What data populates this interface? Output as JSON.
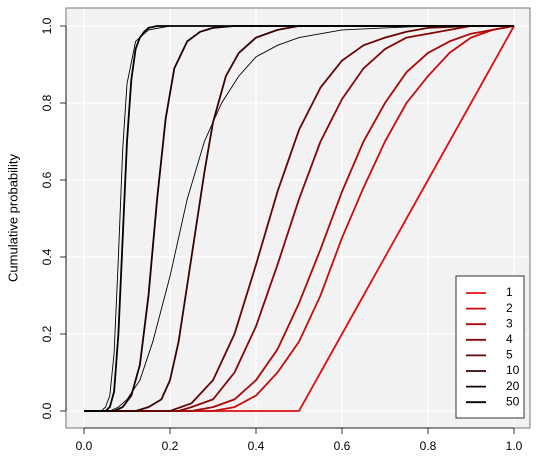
{
  "chart_data": {
    "type": "line",
    "title": "",
    "xlabel": "",
    "ylabel": "Cumulative probability",
    "xlim": [
      0.0,
      1.0
    ],
    "ylim": [
      0.0,
      1.0
    ],
    "x_ticks": [
      "0.0",
      "0.2",
      "0.4",
      "0.6",
      "0.8",
      "1.0"
    ],
    "y_ticks": [
      "0.0",
      "0.2",
      "0.4",
      "0.6",
      "0.8",
      "1.0"
    ],
    "grid": true,
    "background": "#f2f2f2",
    "legend_position": "bottom-right",
    "series": [
      {
        "name": "1",
        "color": "#e01010",
        "x": [
          0.0,
          0.5,
          0.55,
          0.6,
          0.65,
          0.7,
          0.75,
          0.8,
          0.85,
          0.9,
          0.95,
          1.0
        ],
        "y": [
          0.0,
          0.0,
          0.1,
          0.2,
          0.3,
          0.4,
          0.5,
          0.6,
          0.7,
          0.8,
          0.9,
          1.0
        ]
      },
      {
        "name": "2",
        "color": "#c80c0c",
        "x": [
          0.0,
          0.3,
          0.35,
          0.4,
          0.45,
          0.5,
          0.55,
          0.6,
          0.65,
          0.7,
          0.75,
          0.8,
          0.85,
          0.9,
          0.95,
          1.0
        ],
        "y": [
          0.0,
          0.0,
          0.01,
          0.04,
          0.1,
          0.18,
          0.3,
          0.45,
          0.58,
          0.7,
          0.8,
          0.87,
          0.93,
          0.97,
          0.99,
          1.0
        ]
      },
      {
        "name": "3",
        "color": "#a80808",
        "x": [
          0.0,
          0.25,
          0.3,
          0.35,
          0.4,
          0.45,
          0.5,
          0.55,
          0.6,
          0.65,
          0.7,
          0.75,
          0.8,
          0.85,
          0.9,
          0.95,
          1.0
        ],
        "y": [
          0.0,
          0.0,
          0.01,
          0.03,
          0.08,
          0.16,
          0.28,
          0.42,
          0.57,
          0.7,
          0.8,
          0.88,
          0.93,
          0.96,
          0.98,
          0.99,
          1.0
        ]
      },
      {
        "name": "4",
        "color": "#880606",
        "x": [
          0.0,
          0.22,
          0.25,
          0.3,
          0.35,
          0.4,
          0.45,
          0.5,
          0.55,
          0.6,
          0.65,
          0.7,
          0.75,
          0.8,
          0.85,
          0.9,
          1.0
        ],
        "y": [
          0.0,
          0.0,
          0.01,
          0.03,
          0.1,
          0.22,
          0.38,
          0.55,
          0.7,
          0.81,
          0.89,
          0.94,
          0.97,
          0.98,
          0.99,
          1.0,
          1.0
        ]
      },
      {
        "name": "5",
        "color": "#660404",
        "x": [
          0.0,
          0.2,
          0.25,
          0.3,
          0.35,
          0.4,
          0.45,
          0.5,
          0.55,
          0.6,
          0.65,
          0.7,
          0.75,
          0.8,
          0.9,
          1.0
        ],
        "y": [
          0.0,
          0.0,
          0.02,
          0.08,
          0.2,
          0.38,
          0.57,
          0.73,
          0.84,
          0.91,
          0.95,
          0.97,
          0.985,
          0.995,
          1.0,
          1.0
        ]
      },
      {
        "name": "10",
        "color": "#3a0202",
        "x": [
          0.0,
          0.12,
          0.15,
          0.18,
          0.2,
          0.22,
          0.25,
          0.28,
          0.3,
          0.33,
          0.36,
          0.4,
          0.45,
          0.5,
          0.6,
          1.0
        ],
        "y": [
          0.0,
          0.0,
          0.01,
          0.03,
          0.08,
          0.18,
          0.4,
          0.62,
          0.75,
          0.87,
          0.93,
          0.97,
          0.99,
          1.0,
          1.0,
          1.0
        ]
      },
      {
        "name": "20",
        "color": "#1a0000",
        "x": [
          0.0,
          0.07,
          0.09,
          0.11,
          0.13,
          0.15,
          0.17,
          0.19,
          0.21,
          0.24,
          0.27,
          0.3,
          0.35,
          0.4,
          0.5,
          1.0
        ],
        "y": [
          0.0,
          0.0,
          0.01,
          0.04,
          0.12,
          0.3,
          0.55,
          0.76,
          0.89,
          0.96,
          0.985,
          0.995,
          1.0,
          1.0,
          1.0,
          1.0
        ]
      },
      {
        "name": "50",
        "color": "#000000",
        "x": [
          0.0,
          0.05,
          0.06,
          0.07,
          0.08,
          0.09,
          0.1,
          0.11,
          0.12,
          0.13,
          0.14,
          0.15,
          0.17,
          0.2,
          0.3,
          1.0
        ],
        "y": [
          0.0,
          0.0,
          0.01,
          0.05,
          0.2,
          0.45,
          0.7,
          0.86,
          0.94,
          0.97,
          0.985,
          0.995,
          1.0,
          1.0,
          1.0,
          1.0
        ]
      }
    ],
    "extra_lines": [
      {
        "color": "#000000",
        "x": [
          0.0,
          0.06,
          0.08,
          0.1,
          0.13,
          0.16,
          0.2,
          0.24,
          0.28,
          0.32,
          0.36,
          0.4,
          0.45,
          0.5,
          0.6,
          0.7,
          0.8,
          1.0
        ],
        "y": [
          0.0,
          0.0,
          0.01,
          0.03,
          0.08,
          0.18,
          0.35,
          0.55,
          0.7,
          0.8,
          0.87,
          0.92,
          0.95,
          0.97,
          0.99,
          0.995,
          1.0,
          1.0
        ]
      },
      {
        "color": "#000000",
        "x": [
          0.0,
          0.04,
          0.05,
          0.06,
          0.07,
          0.08,
          0.09,
          0.1,
          0.12,
          0.15,
          0.2,
          0.3,
          1.0
        ],
        "y": [
          0.0,
          0.0,
          0.01,
          0.04,
          0.15,
          0.4,
          0.68,
          0.85,
          0.96,
          0.99,
          1.0,
          1.0,
          1.0
        ]
      }
    ]
  }
}
